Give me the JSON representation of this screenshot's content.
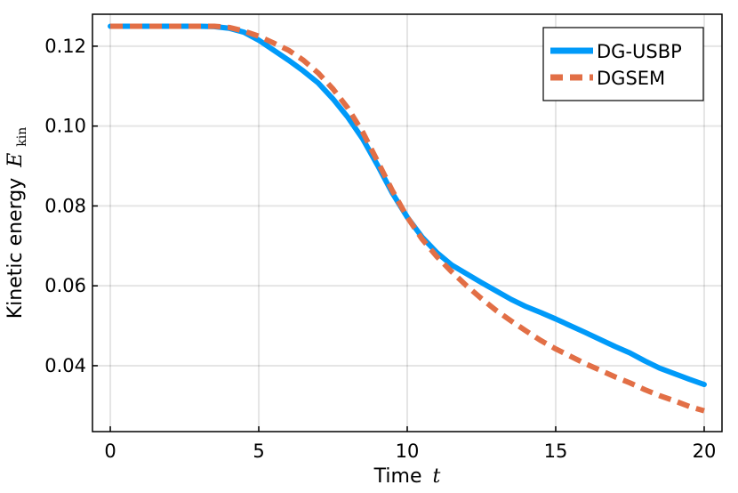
{
  "chart_data": {
    "type": "line",
    "xlabel": "Time",
    "xlabel_var": "t",
    "ylabel": "Kinetic energy",
    "ylabel_var": "E",
    "ylabel_sub": "kin",
    "xlim": [
      -0.6,
      20.6
    ],
    "ylim": [
      0.0235,
      0.128
    ],
    "xticks": [
      0,
      5,
      10,
      15,
      20
    ],
    "yticks": [
      0.04,
      0.06,
      0.08,
      0.1,
      0.12
    ],
    "xtick_labels": [
      "0",
      "5",
      "10",
      "15",
      "20"
    ],
    "ytick_labels": [
      "0.04",
      "0.06",
      "0.08",
      "0.10",
      "0.12"
    ],
    "grid": true,
    "legend_position": "top-right",
    "series": [
      {
        "name": "DG-USBP",
        "color": "#009af9",
        "style": "solid",
        "x": [
          0,
          1,
          2,
          3,
          3.5,
          4,
          4.5,
          5,
          5.5,
          6,
          6.5,
          7,
          7.5,
          8,
          8.5,
          9,
          9.5,
          10,
          10.5,
          11,
          11.5,
          12,
          12.5,
          13,
          13.5,
          14,
          14.5,
          15,
          16,
          17,
          17.5,
          18,
          18.5,
          19,
          19.5,
          20
        ],
        "y": [
          0.125,
          0.125,
          0.125,
          0.125,
          0.1249,
          0.1245,
          0.1235,
          0.1215,
          0.119,
          0.1165,
          0.1138,
          0.1108,
          0.1068,
          0.1022,
          0.0968,
          0.0902,
          0.0832,
          0.0772,
          0.0722,
          0.0683,
          0.0652,
          0.063,
          0.0608,
          0.0587,
          0.0566,
          0.0548,
          0.0533,
          0.0517,
          0.0483,
          0.0448,
          0.0432,
          0.0412,
          0.0394,
          0.038,
          0.0366,
          0.0353
        ]
      },
      {
        "name": "DGSEM",
        "color": "#e26f46",
        "style": "dashed",
        "x": [
          0,
          1,
          2,
          3,
          3.5,
          4,
          4.5,
          5,
          5.5,
          6,
          6.5,
          7,
          7.5,
          8,
          8.5,
          9,
          9.5,
          10,
          10.5,
          11,
          11.5,
          12,
          12.5,
          13,
          13.5,
          14,
          14.5,
          15,
          16,
          17,
          17.5,
          18,
          18.5,
          19,
          19.5,
          20
        ],
        "y": [
          0.125,
          0.125,
          0.125,
          0.125,
          0.125,
          0.1247,
          0.1238,
          0.1225,
          0.1208,
          0.119,
          0.1165,
          0.1133,
          0.1093,
          0.1045,
          0.0985,
          0.0912,
          0.0838,
          0.0772,
          0.0717,
          0.0673,
          0.0635,
          0.06,
          0.0568,
          0.0538,
          0.0512,
          0.0487,
          0.0463,
          0.0442,
          0.0405,
          0.0372,
          0.0357,
          0.034,
          0.0325,
          0.0312,
          0.0298,
          0.0287
        ]
      }
    ]
  }
}
